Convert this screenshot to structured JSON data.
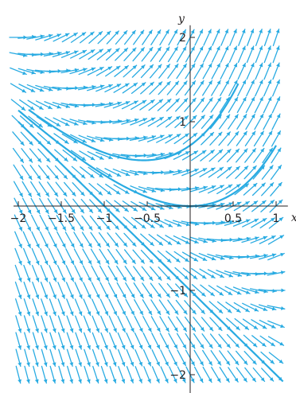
{
  "chart_data": {
    "type": "direction-field",
    "title": "",
    "xlabel": "x",
    "ylabel": "y",
    "xlim": [
      -2.0,
      1.1
    ],
    "ylim": [
      -2.2,
      2.2
    ],
    "x_ticks": [
      {
        "value": -2,
        "label": "−2"
      },
      {
        "value": -1.5,
        "label": "−1.5"
      },
      {
        "value": -1,
        "label": "−1"
      },
      {
        "value": -0.5,
        "label": "−0.5"
      },
      {
        "value": 0.5,
        "label": "0.5"
      },
      {
        "value": 1,
        "label": "1"
      }
    ],
    "y_ticks": [
      {
        "value": 2,
        "label": "2"
      },
      {
        "value": 1,
        "label": "1"
      },
      {
        "value": -1,
        "label": "−1"
      },
      {
        "value": -2,
        "label": "−2"
      }
    ],
    "slope_field": {
      "formula": "dy/dx = x + y",
      "x_range": [
        -2.0,
        1.0
      ],
      "y_range": [
        -2.0,
        2.1
      ],
      "x_step": 0.1,
      "y_step": 0.2,
      "arrow_color": "#29abe2"
    },
    "solution_curves": [
      {
        "y_at_x0": -1,
        "x_range": [
          -2.0,
          1.08
        ]
      },
      {
        "y_at_x0": 0,
        "x_range": [
          -2.0,
          1.0
        ]
      },
      {
        "y_at_x0": 0.72,
        "x_range": [
          -1.88,
          0.56
        ]
      }
    ],
    "curve_color": "#29abe2",
    "axis_color": "#231f20",
    "grid": false,
    "legend": "none"
  }
}
